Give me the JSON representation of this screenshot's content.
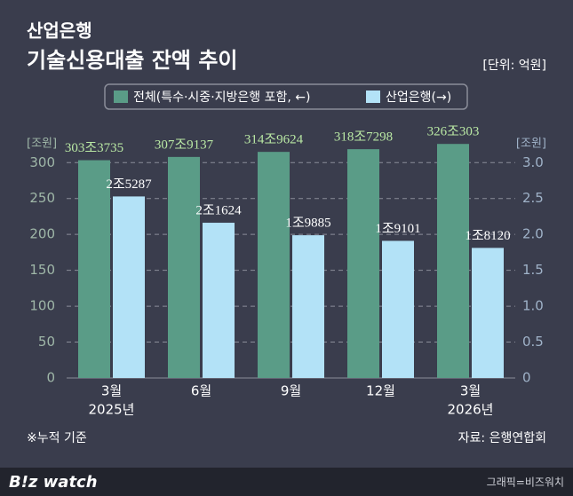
{
  "chart_data": {
    "type": "bar",
    "kicker": "산업은행",
    "title": "기술신용대출 잔액 추이",
    "unit_note": "[단위: 억원]",
    "y_label": "[조원]",
    "y2_label": "[조원]",
    "categories": [
      "3월",
      "6월",
      "9월",
      "12월",
      "3월"
    ],
    "category_years": [
      "2025년",
      null,
      null,
      null,
      "2026년"
    ],
    "series": [
      {
        "name": "전체(특수·시중·지방은행 포함, ←)",
        "color": "#5a9c87",
        "label_color": "#b9e8a4",
        "values": [
          303.3735,
          307.9137,
          314.9624,
          318.7298,
          326.0303
        ],
        "value_labels": [
          "303조3735",
          "307조9137",
          "314조9624",
          "318조7298",
          "326조303"
        ]
      },
      {
        "name": "산업은행(→)",
        "color": "#b3e2f7",
        "label_color": "#ffffff",
        "axis": "y2",
        "values": [
          2.5287,
          2.1624,
          1.9885,
          1.9101,
          1.812
        ],
        "value_labels": [
          "2조5287",
          "2조1624",
          "1조9885",
          "1조9101",
          "1조8120"
        ]
      }
    ],
    "ylim": [
      0,
      330
    ],
    "yticks": [
      0,
      50,
      100,
      150,
      200,
      250,
      300
    ],
    "y2lim": [
      0,
      3.3
    ],
    "y2ticks": [
      0,
      {
        "value": 0.5,
        "label": "0.5"
      },
      {
        "value": 1,
        "label": "1.0"
      },
      {
        "value": 1.5,
        "label": "1.5"
      },
      {
        "value": 2,
        "label": "2.0"
      },
      {
        "value": 2.5,
        "label": "2.5"
      },
      {
        "value": 3,
        "label": "3.0"
      }
    ],
    "grid": true,
    "footnote": "※누적 기준",
    "source": "자료: 은행연합회"
  },
  "branding": {
    "logo": "B!z watch",
    "credit": "그래픽=비즈워치"
  }
}
